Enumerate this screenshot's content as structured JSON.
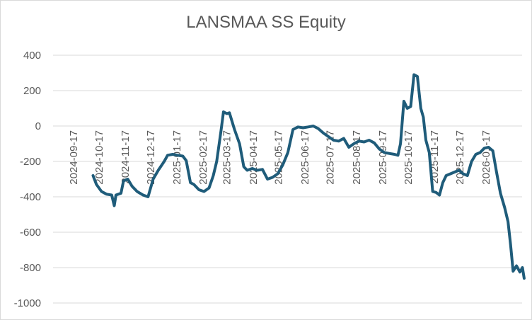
{
  "chart_data": {
    "type": "line",
    "title": "LANSMAA SS Equity",
    "xlabel": "",
    "ylabel": "",
    "ylim": [
      -1000,
      400
    ],
    "yticks": [
      400,
      200,
      0,
      -200,
      -400,
      -600,
      -800,
      -1000
    ],
    "xticks": [
      "2024-09-17",
      "2024-10-17",
      "2024-11-17",
      "2024-12-17",
      "2025-01-17",
      "2025-02-17",
      "2025-03-17",
      "2025-04-17",
      "2025-05-17",
      "2025-06-17",
      "2025-07-17",
      "2025-08-17",
      "2025-09-17",
      "2025-10-17",
      "2025-11-17",
      "2025-12-17",
      "2026-01-17"
    ],
    "grid": true,
    "legend": "none",
    "color": "#1f5c7a",
    "series": [
      {
        "points": [
          [
            "2024-10-10",
            -280
          ],
          [
            "2024-10-14",
            -330
          ],
          [
            "2024-10-20",
            -370
          ],
          [
            "2024-10-26",
            -385
          ],
          [
            "2024-11-01",
            -390
          ],
          [
            "2024-11-04",
            -450
          ],
          [
            "2024-11-06",
            -390
          ],
          [
            "2024-11-12",
            -380
          ],
          [
            "2024-11-15",
            -310
          ],
          [
            "2024-11-20",
            -300
          ],
          [
            "2024-11-25",
            -340
          ],
          [
            "2024-12-01",
            -370
          ],
          [
            "2024-12-08",
            -390
          ],
          [
            "2024-12-14",
            -400
          ],
          [
            "2024-12-20",
            -300
          ],
          [
            "2024-12-26",
            -250
          ],
          [
            "2025-01-02",
            -200
          ],
          [
            "2025-01-06",
            -165
          ],
          [
            "2025-01-12",
            -160
          ],
          [
            "2025-01-18",
            -165
          ],
          [
            "2025-01-24",
            -170
          ],
          [
            "2025-01-28",
            -195
          ],
          [
            "2025-02-02",
            -320
          ],
          [
            "2025-02-06",
            -330
          ],
          [
            "2025-02-12",
            -360
          ],
          [
            "2025-02-18",
            -370
          ],
          [
            "2025-02-24",
            -350
          ],
          [
            "2025-03-01",
            -280
          ],
          [
            "2025-03-05",
            -200
          ],
          [
            "2025-03-10",
            -30
          ],
          [
            "2025-03-13",
            80
          ],
          [
            "2025-03-17",
            70
          ],
          [
            "2025-03-20",
            75
          ],
          [
            "2025-03-26",
            -20
          ],
          [
            "2025-04-01",
            -100
          ],
          [
            "2025-04-06",
            -230
          ],
          [
            "2025-04-10",
            -250
          ],
          [
            "2025-04-16",
            -240
          ],
          [
            "2025-04-22",
            -250
          ],
          [
            "2025-04-28",
            -245
          ],
          [
            "2025-05-04",
            -300
          ],
          [
            "2025-05-10",
            -290
          ],
          [
            "2025-05-16",
            -270
          ],
          [
            "2025-05-22",
            -220
          ],
          [
            "2025-05-28",
            -150
          ],
          [
            "2025-06-03",
            -20
          ],
          [
            "2025-06-09",
            -5
          ],
          [
            "2025-06-15",
            -10
          ],
          [
            "2025-06-21",
            -5
          ],
          [
            "2025-06-27",
            0
          ],
          [
            "2025-07-03",
            -15
          ],
          [
            "2025-07-09",
            -40
          ],
          [
            "2025-07-15",
            -60
          ],
          [
            "2025-07-21",
            -80
          ],
          [
            "2025-07-27",
            -85
          ],
          [
            "2025-08-02",
            -70
          ],
          [
            "2025-08-08",
            -120
          ],
          [
            "2025-08-14",
            -100
          ],
          [
            "2025-08-20",
            -85
          ],
          [
            "2025-08-26",
            -90
          ],
          [
            "2025-09-01",
            -80
          ],
          [
            "2025-09-07",
            -95
          ],
          [
            "2025-09-13",
            -130
          ],
          [
            "2025-09-19",
            -150
          ],
          [
            "2025-09-25",
            -155
          ],
          [
            "2025-10-01",
            -160
          ],
          [
            "2025-10-05",
            -165
          ],
          [
            "2025-10-08",
            -100
          ],
          [
            "2025-10-12",
            140
          ],
          [
            "2025-10-16",
            100
          ],
          [
            "2025-10-20",
            110
          ],
          [
            "2025-10-24",
            290
          ],
          [
            "2025-10-28",
            280
          ],
          [
            "2025-11-01",
            100
          ],
          [
            "2025-11-04",
            50
          ],
          [
            "2025-11-07",
            -80
          ],
          [
            "2025-11-11",
            -150
          ],
          [
            "2025-11-15",
            -370
          ],
          [
            "2025-11-19",
            -375
          ],
          [
            "2025-11-23",
            -390
          ],
          [
            "2025-11-27",
            -320
          ],
          [
            "2025-12-01",
            -280
          ],
          [
            "2025-12-06",
            -270
          ],
          [
            "2025-12-11",
            -260
          ],
          [
            "2025-12-16",
            -250
          ],
          [
            "2025-12-21",
            -270
          ],
          [
            "2025-12-26",
            -280
          ],
          [
            "2025-12-31",
            -200
          ],
          [
            "2026-01-05",
            -160
          ],
          [
            "2026-01-10",
            -150
          ],
          [
            "2026-01-15",
            -125
          ],
          [
            "2026-01-20",
            -120
          ],
          [
            "2026-01-25",
            -140
          ],
          [
            "2026-01-29",
            -250
          ],
          [
            "2026-02-03",
            -380
          ],
          [
            "2026-02-08",
            -460
          ],
          [
            "2026-02-12",
            -540
          ],
          [
            "2026-02-15",
            -670
          ],
          [
            "2026-02-18",
            -820
          ],
          [
            "2026-02-22",
            -790
          ],
          [
            "2026-02-26",
            -825
          ],
          [
            "2026-03-01",
            -800
          ],
          [
            "2026-03-03",
            -860
          ]
        ]
      }
    ]
  }
}
